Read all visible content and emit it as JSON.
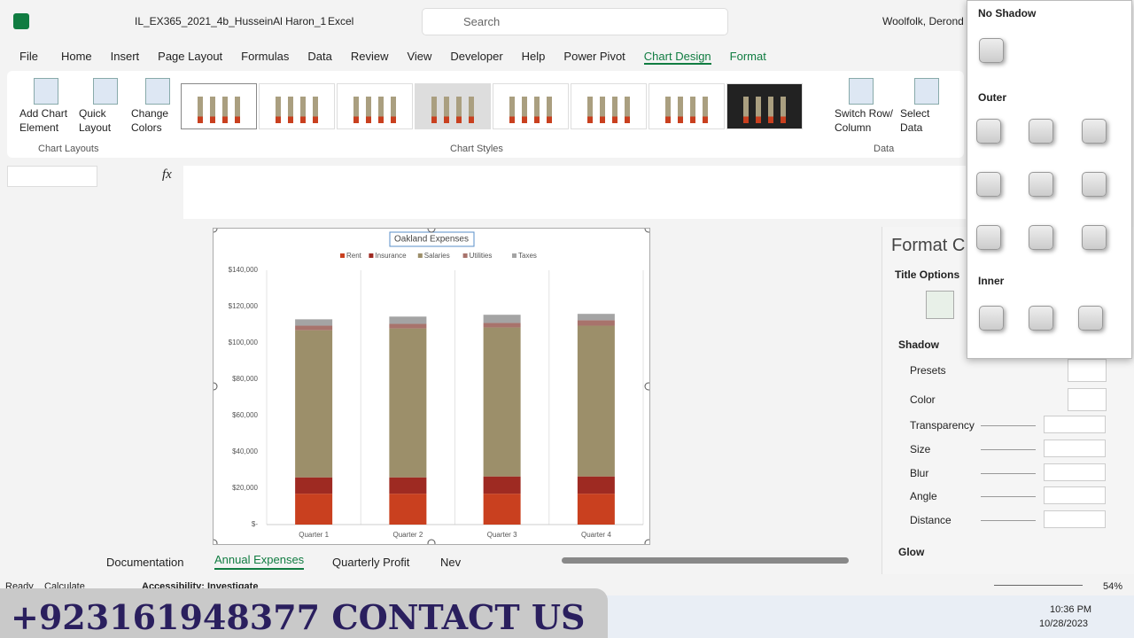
{
  "title_bar": {
    "file_name": "IL_EX365_2021_4b_HusseinAl Haron_1",
    "app": "Excel",
    "search": "Search",
    "user": "Woolfolk, Derond"
  },
  "ribbon_tabs": [
    "File",
    "Home",
    "Insert",
    "Page Layout",
    "Formulas",
    "Data",
    "Review",
    "View",
    "Developer",
    "Help",
    "Power Pivot",
    "Chart Design",
    "Format"
  ],
  "ribbon_buttons": [
    [
      "Add Chart",
      "Element"
    ],
    [
      "Quick",
      "Layout"
    ],
    [
      "Change",
      "Colors"
    ],
    [
      "Switch Row/",
      "Column"
    ],
    [
      "Select",
      "Data"
    ]
  ],
  "ribbon_groups": [
    "Chart Layouts",
    "Chart Styles",
    "Data"
  ],
  "formula_bar": {
    "fx": "fx"
  },
  "sheet_tabs": [
    "Documentation",
    "Annual Expenses",
    "Quarterly Profit",
    "Nev"
  ],
  "status_bar": {
    "ready": "Ready",
    "calculate": "Calculate",
    "accessibility": "Accessibility: Investigate",
    "zoom": "54%"
  },
  "format_pane": {
    "title": "Format C",
    "tab": "Title Options",
    "section": "Shadow",
    "fields": [
      "Presets",
      "Color",
      "Transparency",
      "Size",
      "Blur",
      "Angle",
      "Distance"
    ],
    "next_section": "Glow"
  },
  "shadow_menu": {
    "no_shadow": "No Shadow",
    "outer": "Outer",
    "inner": "Inner"
  },
  "taskbar": {
    "time": "10:36 PM",
    "date": "10/28/2023"
  },
  "watermark": "+923161948377 CONTACT US",
  "chart_data": {
    "type": "stacked_bar",
    "title": "Oakland Expenses",
    "categories": [
      "Quarter 1",
      "Quarter 2",
      "Quarter 3",
      "Quarter 4"
    ],
    "series": [
      {
        "name": "Rent",
        "color": "#c9401f",
        "values": [
          17000,
          17000,
          17000,
          17000
        ]
      },
      {
        "name": "Insurance",
        "color": "#9e2a22",
        "values": [
          9000,
          9000,
          9500,
          9500
        ]
      },
      {
        "name": "Salaries",
        "color": "#9c8f6a",
        "values": [
          81000,
          82000,
          82000,
          83000
        ]
      },
      {
        "name": "Utilities",
        "color": "#a8736c",
        "values": [
          2500,
          2500,
          2500,
          3000
        ]
      },
      {
        "name": "Taxes",
        "color": "#a4a4a4",
        "values": [
          3500,
          4000,
          4500,
          3500
        ]
      }
    ],
    "ylim": [
      0,
      140000
    ],
    "yticks": [
      {
        "value": 0,
        "label": "$-"
      },
      {
        "value": 20000,
        "label": "$20,000"
      },
      {
        "value": 40000,
        "label": "$40,000"
      },
      {
        "value": 60000,
        "label": "$60,000"
      },
      {
        "value": 80000,
        "label": "$80,000"
      },
      {
        "value": 100000,
        "label": "$100,000"
      },
      {
        "value": 120000,
        "label": "$120,000"
      },
      {
        "value": 140000,
        "label": "$140,000"
      }
    ]
  }
}
